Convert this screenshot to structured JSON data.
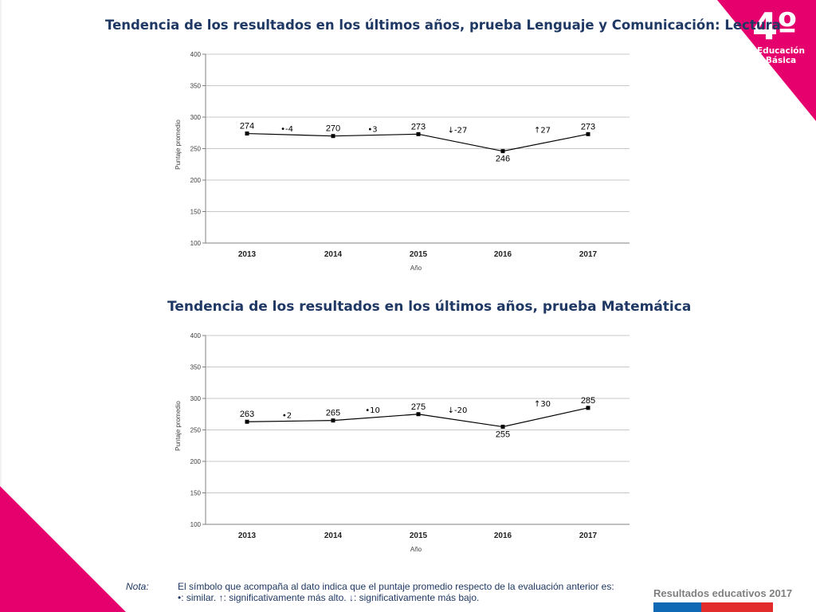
{
  "badge": {
    "grade": "4º",
    "line1": "Educación",
    "line2": "Básica",
    "color": "#e5006d"
  },
  "chart_data": [
    {
      "type": "line",
      "title": "Tendencia de los resultados en los últimos años, prueba Lenguaje y Comunicación: Lectura",
      "xlabel": "Año",
      "ylabel": "Puntaje promedio",
      "x": [
        "2013",
        "2014",
        "2015",
        "2016",
        "2017"
      ],
      "values": [
        274,
        270,
        273,
        246,
        273
      ],
      "ylim": [
        100,
        400
      ],
      "yticks": [
        "100",
        "150",
        "200",
        "250",
        "300",
        "350",
        "400"
      ],
      "changes": [
        "•-4",
        "•3",
        "↓-27",
        "↑27"
      ],
      "grid": true
    },
    {
      "type": "line",
      "title": "Tendencia de los resultados en los últimos años, prueba Matemática",
      "xlabel": "Año",
      "ylabel": "Puntaje promedio",
      "x": [
        "2013",
        "2014",
        "2015",
        "2016",
        "2017"
      ],
      "values": [
        263,
        265,
        275,
        255,
        285
      ],
      "ylim": [
        100,
        400
      ],
      "yticks": [
        "100",
        "150",
        "200",
        "250",
        "300",
        "350",
        "400"
      ],
      "changes": [
        "•2",
        "•10",
        "↓-20",
        "↑30"
      ],
      "grid": true
    }
  ],
  "note": {
    "label": "Nota:",
    "line1": "El símbolo que acompaña al dato indica que el puntaje promedio respecto de la evaluación anterior es:",
    "line2": "•: similar.     ↑: significativamente más alto.     ↓: significativamente más bajo."
  },
  "footer": {
    "brand": "Resultados educativos 2017"
  }
}
